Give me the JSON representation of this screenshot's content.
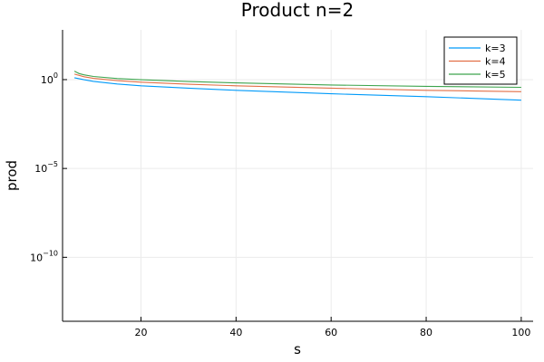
{
  "chart_data": {
    "type": "line",
    "title": "Product n=2",
    "xlabel": "s",
    "ylabel": "prod",
    "xlim": [
      3.5,
      102.5
    ],
    "ylim": [
      -13.6,
      2.8
    ],
    "y_scale": "log10",
    "x_ticks": [
      20,
      40,
      60,
      80,
      100
    ],
    "y_ticks": [
      {
        "exp": 0,
        "base": "10",
        "sup": "0"
      },
      {
        "exp": -5,
        "base": "10",
        "sup": "−5"
      },
      {
        "exp": -10,
        "base": "10",
        "sup": "−10"
      }
    ],
    "grid": true,
    "legend_position": "top-right",
    "series": [
      {
        "name": "k=3",
        "color": "#009af9",
        "x": [
          6,
          8,
          10,
          15,
          20,
          30,
          40,
          60,
          80,
          100
        ],
        "y": [
          1.28,
          0.98,
          0.8,
          0.57,
          0.45,
          0.33,
          0.25,
          0.16,
          0.11,
          0.07
        ]
      },
      {
        "name": "k=4",
        "color": "#e26f46",
        "x": [
          6,
          8,
          10,
          15,
          20,
          30,
          40,
          60,
          80,
          100
        ],
        "y": [
          2.05,
          1.45,
          1.18,
          0.88,
          0.72,
          0.55,
          0.45,
          0.33,
          0.25,
          0.21
        ]
      },
      {
        "name": "k=5",
        "color": "#3da44d",
        "x": [
          6,
          6.5,
          7,
          8,
          10,
          15,
          20,
          30,
          40,
          60,
          80,
          100
        ],
        "y": [
          3.0,
          2.55,
          2.2,
          1.85,
          1.5,
          1.15,
          0.98,
          0.78,
          0.65,
          0.5,
          0.42,
          0.37
        ]
      }
    ]
  }
}
